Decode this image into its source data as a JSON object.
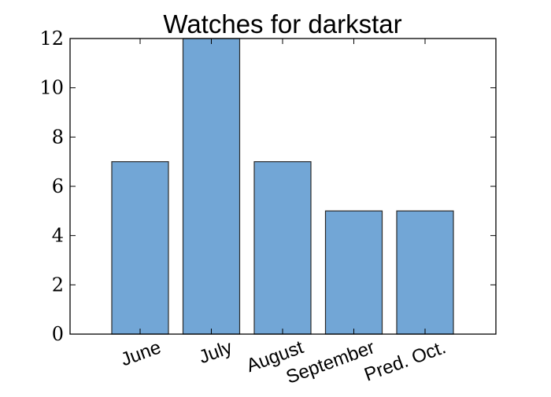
{
  "chart_data": {
    "type": "bar",
    "title": "Watches for darkstar",
    "xlabel": "",
    "ylabel": "",
    "categories": [
      "June",
      "July",
      "August",
      "September",
      "Pred. Oct."
    ],
    "values": [
      7,
      12,
      7,
      5,
      5
    ],
    "ylim": [
      0,
      12
    ],
    "yticks": [
      0,
      2,
      4,
      6,
      8,
      10,
      12
    ],
    "bar_color": "#72a6d6",
    "bar_edge_color": "#2b2b2b",
    "grid": false,
    "legend": "none"
  }
}
